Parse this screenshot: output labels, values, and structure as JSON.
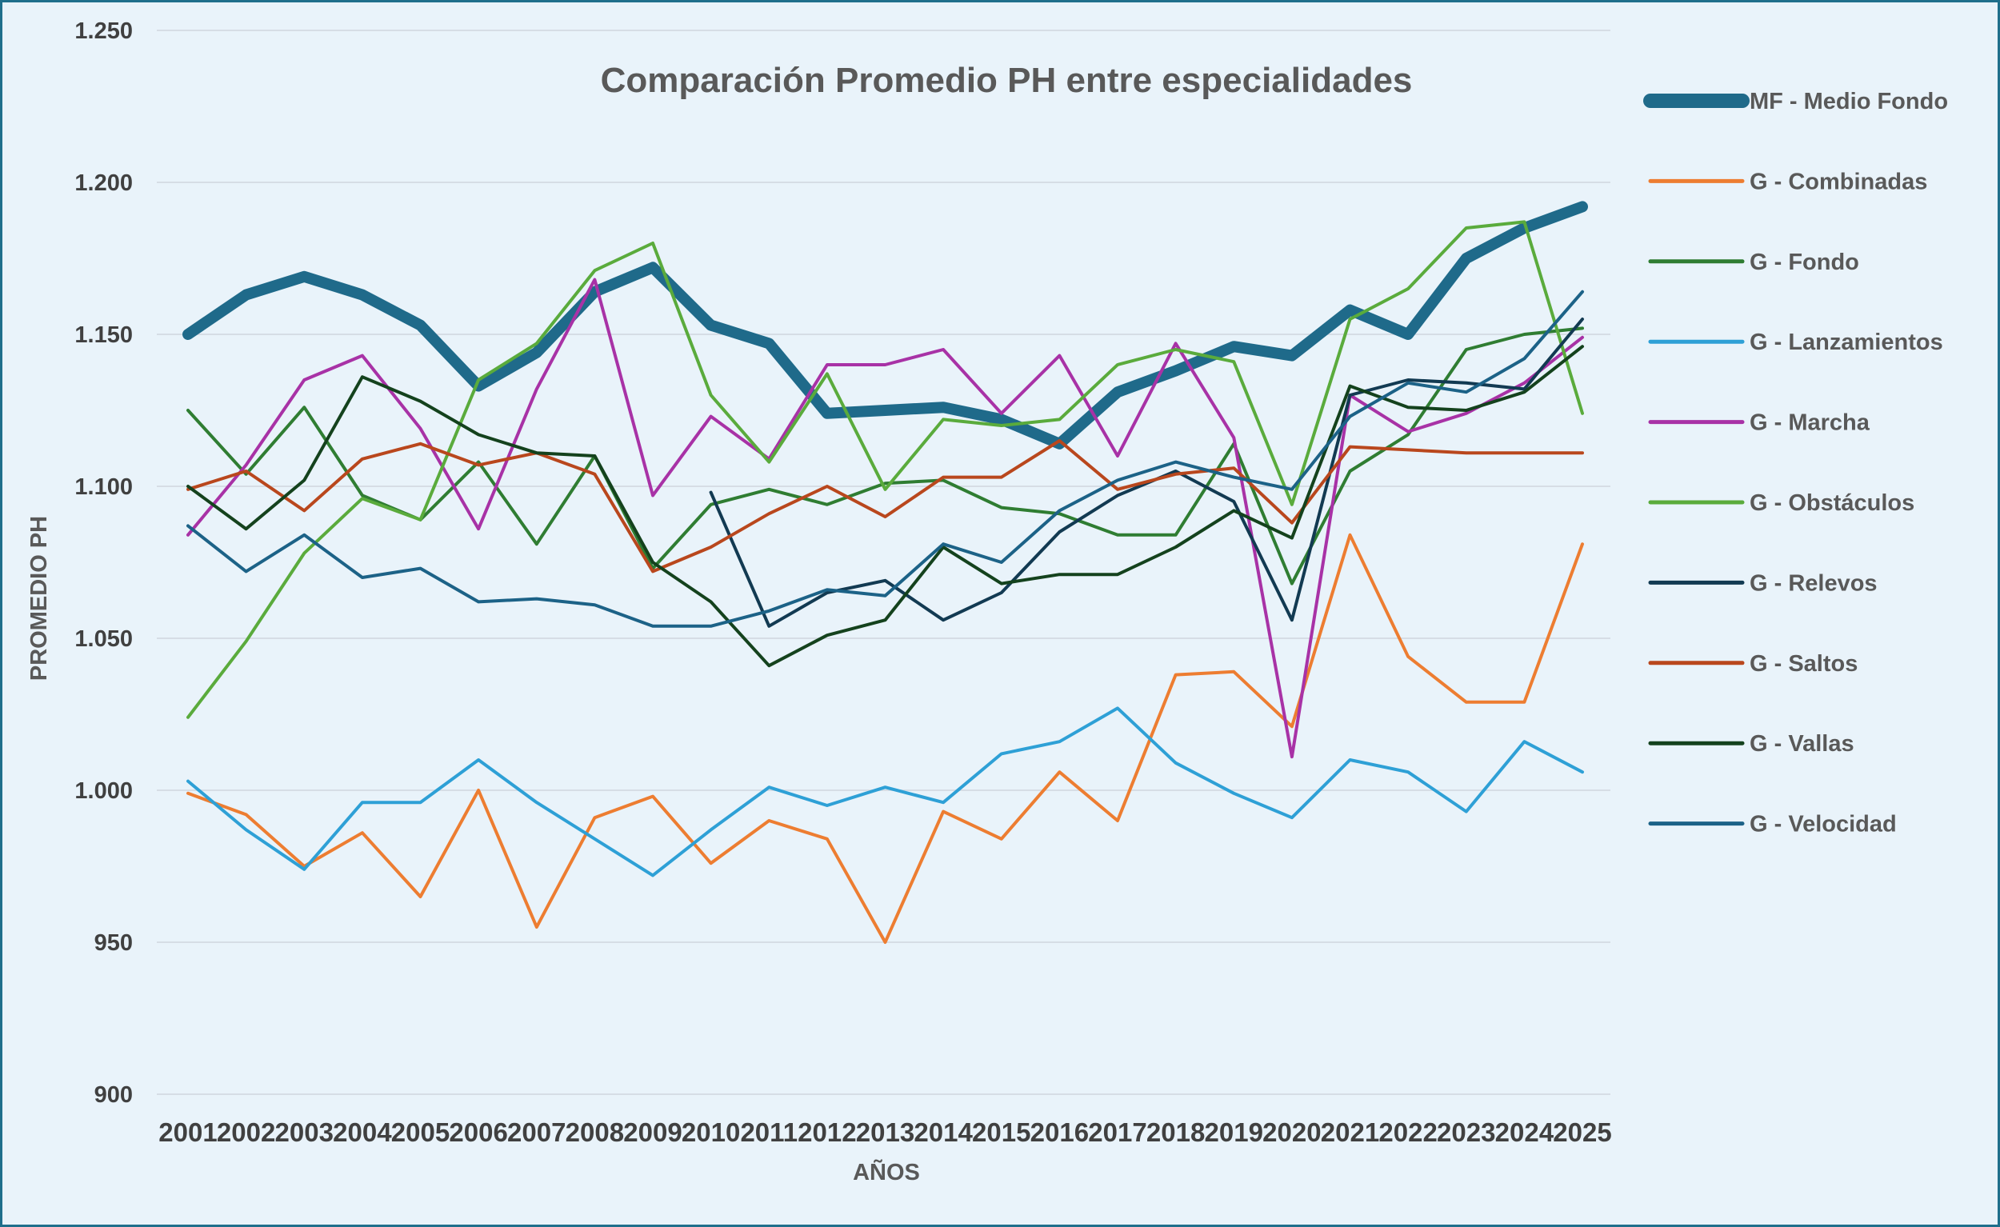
{
  "chart_data": {
    "type": "line",
    "title": "Comparación Promedio PH entre especialidades",
    "xlabel": "AÑOS",
    "ylabel": "PROMEDIO PH",
    "ylim": [
      900,
      1250
    ],
    "yticks": [
      900,
      950,
      1000,
      1050,
      1100,
      1150,
      1200,
      1250
    ],
    "ytick_labels": [
      "900",
      "950",
      "1.000",
      "1.050",
      "1.100",
      "1.150",
      "1.200",
      "1.250"
    ],
    "grid": true,
    "legend_position": "right",
    "categories": [
      "2001",
      "2002",
      "2003",
      "2004",
      "2005",
      "2006",
      "2007",
      "2008",
      "2009",
      "2010",
      "2011",
      "2012",
      "2013",
      "2014",
      "2015",
      "2016",
      "2017",
      "2018",
      "2019",
      "2020",
      "2021",
      "2022",
      "2023",
      "2024",
      "2025"
    ],
    "series": [
      {
        "name": "MF - Medio Fondo",
        "color": "#1f6a8a",
        "width": 14,
        "values": [
          1150,
          1163,
          1169,
          1163,
          1153,
          1133,
          1144,
          1164,
          1172,
          1153,
          1147,
          1124,
          1125,
          1126,
          1122,
          1114,
          1131,
          1138,
          1146,
          1143,
          1158,
          1150,
          1175,
          1185,
          1192
        ]
      },
      {
        "name": "G - Combinadas",
        "color": "#ed7d31",
        "width": 4,
        "values": [
          999,
          992,
          975,
          986,
          965,
          1000,
          955,
          991,
          998,
          976,
          990,
          984,
          950,
          993,
          984,
          1006,
          990,
          1038,
          1039,
          1021,
          1084,
          1044,
          1029,
          1029,
          1081
        ]
      },
      {
        "name": "G - Fondo",
        "color": "#2f7d32",
        "width": 4,
        "values": [
          1125,
          1104,
          1126,
          1097,
          1089,
          1108,
          1081,
          1110,
          1073,
          1094,
          1099,
          1094,
          1101,
          1102,
          1093,
          1091,
          1084,
          1084,
          1114,
          1068,
          1105,
          1117,
          1145,
          1150,
          1152
        ]
      },
      {
        "name": "G - Lanzamientos",
        "color": "#2ea0d6",
        "width": 4,
        "values": [
          1003,
          987,
          974,
          996,
          996,
          1010,
          996,
          984,
          972,
          987,
          1001,
          995,
          1001,
          996,
          1012,
          1016,
          1027,
          1009,
          999,
          991,
          1010,
          1006,
          993,
          1016,
          1006
        ]
      },
      {
        "name": "G - Marcha",
        "color": "#a832a6",
        "width": 4,
        "values": [
          1084,
          1107,
          1135,
          1143,
          1119,
          1086,
          1132,
          1168,
          1097,
          1123,
          1109,
          1140,
          1140,
          1145,
          1124,
          1143,
          1110,
          1147,
          1116,
          1011,
          1130,
          1118,
          1124,
          1134,
          1149
        ]
      },
      {
        "name": "G - Obstáculos",
        "color": "#5aab3c",
        "width": 4,
        "values": [
          1024,
          1049,
          1078,
          1096,
          1089,
          1135,
          1147,
          1171,
          1180,
          1130,
          1108,
          1137,
          1099,
          1122,
          1120,
          1122,
          1140,
          1145,
          1141,
          1094,
          1155,
          1165,
          1185,
          1187,
          1124
        ]
      },
      {
        "name": "G - Relevos",
        "color": "#123a52",
        "width": 4,
        "values": [
          null,
          null,
          null,
          null,
          null,
          null,
          null,
          null,
          null,
          1098,
          1054,
          1065,
          1069,
          1056,
          1065,
          1085,
          1097,
          1105,
          1095,
          1056,
          1130,
          1135,
          1134,
          1132,
          1155
        ]
      },
      {
        "name": "G - Saltos",
        "color": "#b9471d",
        "width": 4,
        "values": [
          1099,
          1105,
          1092,
          1109,
          1114,
          1107,
          1111,
          1104,
          1072,
          1080,
          1091,
          1100,
          1090,
          1103,
          1103,
          1115,
          1099,
          1104,
          1106,
          1088,
          1113,
          1112,
          1111,
          1111,
          1111
        ]
      },
      {
        "name": "G - Vallas",
        "color": "#14421d",
        "width": 4,
        "values": [
          1100,
          1086,
          1102,
          1136,
          1128,
          1117,
          1111,
          1110,
          1075,
          1062,
          1041,
          1051,
          1056,
          1080,
          1068,
          1071,
          1071,
          1080,
          1092,
          1083,
          1133,
          1126,
          1125,
          1131,
          1146
        ]
      },
      {
        "name": "G - Velocidad",
        "color": "#1c6287",
        "width": 4,
        "values": [
          1087,
          1072,
          1084,
          1070,
          1073,
          1062,
          1063,
          1061,
          1054,
          1054,
          1059,
          1066,
          1064,
          1081,
          1075,
          1092,
          1102,
          1108,
          1103,
          1099,
          1123,
          1134,
          1131,
          1142,
          1164
        ]
      }
    ]
  }
}
